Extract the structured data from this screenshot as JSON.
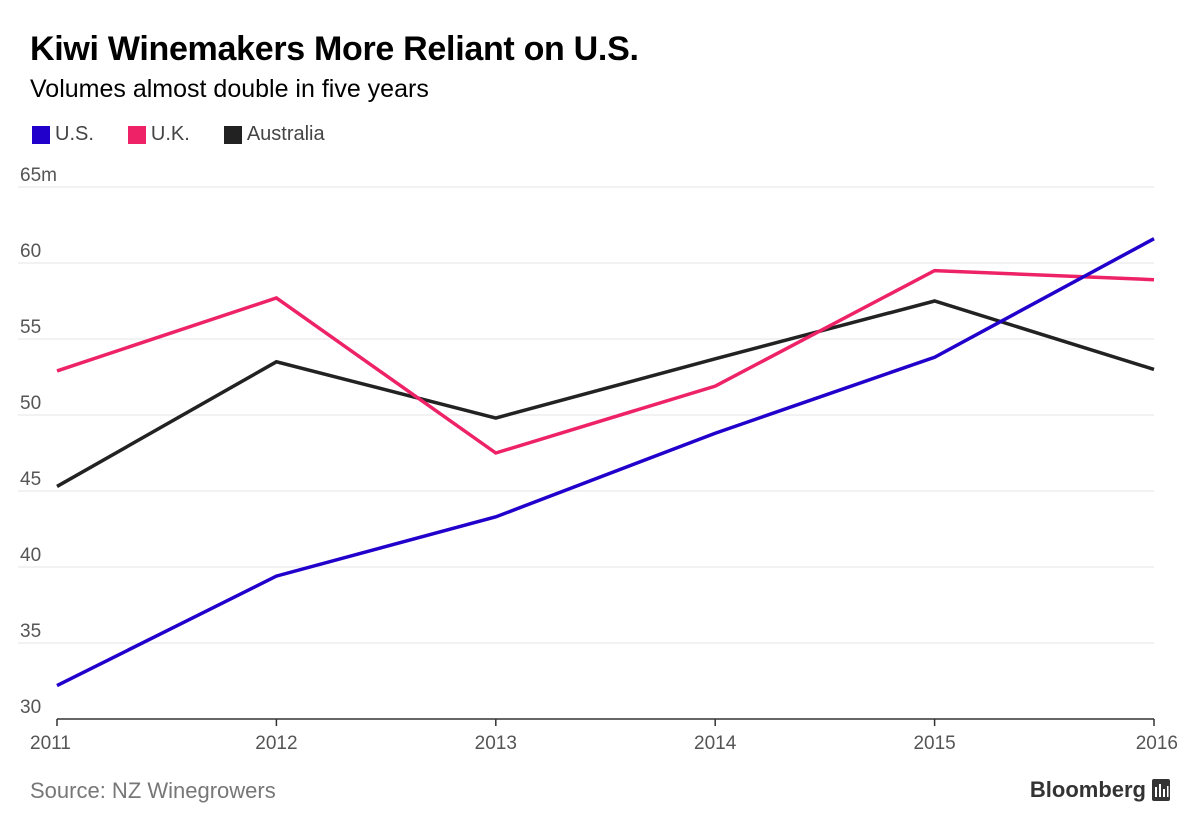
{
  "chart_data": {
    "type": "line",
    "title": "Kiwi Winemakers More Reliant on U.S.",
    "subtitle": "Volumes almost double in five years",
    "x": [
      "2011",
      "2012",
      "2013",
      "2014",
      "2015",
      "2016"
    ],
    "ylim": [
      30,
      65
    ],
    "yticks": [
      "30",
      "35",
      "40",
      "45",
      "50",
      "55",
      "60",
      "65m"
    ],
    "ytick_values": [
      30,
      35,
      40,
      45,
      50,
      55,
      60,
      65
    ],
    "grid": true,
    "legend_position": "top-left",
    "series": [
      {
        "name": "U.S.",
        "color": "#2200cc",
        "values": [
          32.2,
          39.4,
          43.3,
          48.8,
          53.8,
          61.6
        ]
      },
      {
        "name": "U.K.",
        "color": "#ee2266",
        "values": [
          52.9,
          57.7,
          47.5,
          51.9,
          59.5,
          58.9
        ]
      },
      {
        "name": "Australia",
        "color": "#222222",
        "values": [
          45.3,
          53.5,
          49.8,
          53.7,
          57.5,
          53.0
        ]
      }
    ]
  },
  "footer": {
    "source": "Source: NZ Winegrowers",
    "brand": "Bloomberg"
  },
  "icons": {
    "brand_icon": "bloomberg-terminal-icon"
  }
}
